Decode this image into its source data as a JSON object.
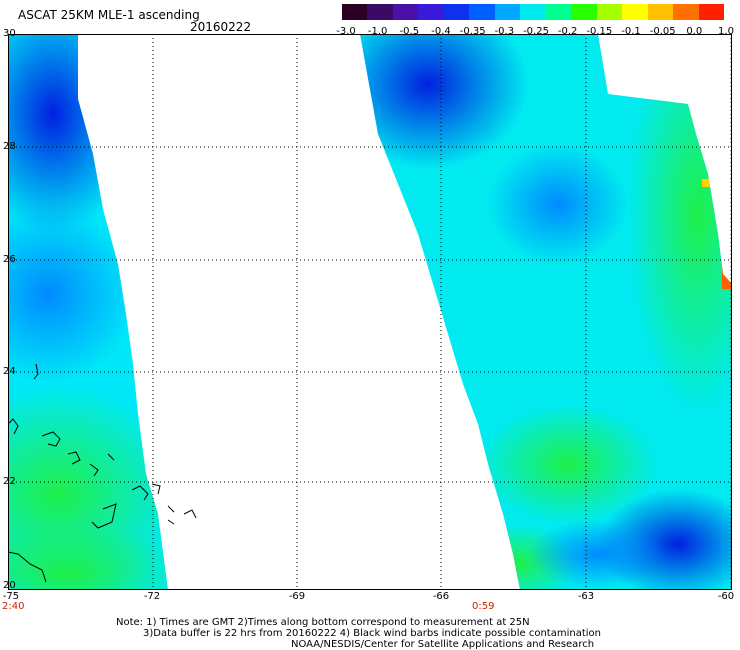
{
  "header": {
    "title": "ASCAT 25KM MLE-1 ascending",
    "date": "20160222"
  },
  "colorbar": {
    "labels": [
      "-3.0",
      "-1.0",
      "-0.5",
      "-0.4",
      "-0.35",
      "-0.3",
      "-0.25",
      "-0.2",
      "-0.15",
      "-0.1",
      "-0.05",
      "0.0",
      "1.0"
    ],
    "colors": [
      "#2a0022",
      "#3b0a66",
      "#4a10a8",
      "#3a1ad8",
      "#1030f0",
      "#0060ff",
      "#00a8ff",
      "#00e8f0",
      "#00ff90",
      "#28ff00",
      "#a8ff00",
      "#ffff00",
      "#ffc000",
      "#ff7000",
      "#ff2000"
    ]
  },
  "map": {
    "lat_labels": [
      "30",
      "28",
      "26",
      "24",
      "22",
      "20"
    ],
    "lon_labels": [
      "-75",
      "-72",
      "-69",
      "-66",
      "-63",
      "-60"
    ],
    "times": [
      "2:40",
      "0:59"
    ]
  },
  "footer": {
    "note_line1": "Note: 1) Times are GMT 2)Times along bottom correspond to measurement at 25N",
    "note_line2": "3)Data buffer is 22 hrs from 20160222 4) Black wind barbs indicate possible contamination",
    "credit": "NOAA/NESDIS/Center for Satellite Applications and Research"
  }
}
